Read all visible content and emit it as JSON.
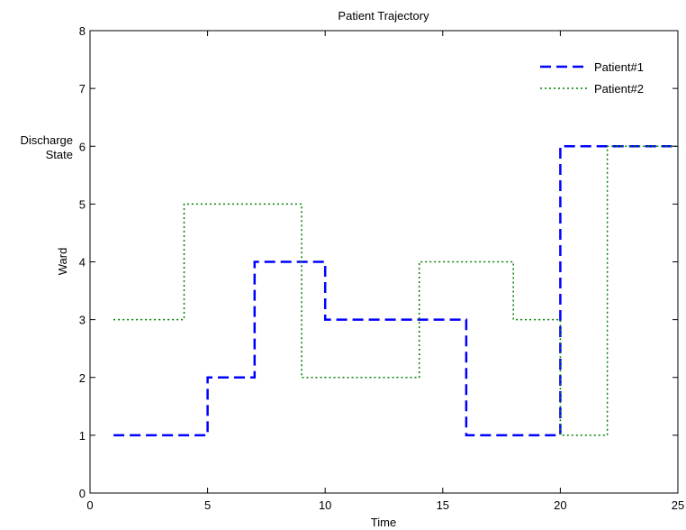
{
  "chart_data": {
    "type": "line",
    "title": "Patient Trajectory",
    "xlabel": "Time",
    "ylabel": "Ward",
    "xlim": [
      0,
      25
    ],
    "ylim": [
      0,
      8
    ],
    "xticks": [
      0,
      5,
      10,
      15,
      20,
      25
    ],
    "yticks": [
      0,
      1,
      2,
      3,
      4,
      5,
      6,
      7,
      8
    ],
    "y_annotation": [
      "Discharge",
      "State"
    ],
    "grid": false,
    "legend_position": "top-right",
    "series": [
      {
        "name": "Patient#1",
        "color": "#0000ff",
        "style": "dashed",
        "x": [
          1,
          5,
          5,
          7,
          7,
          10,
          10,
          16,
          16,
          20,
          20,
          25
        ],
        "y": [
          1,
          1,
          2,
          2,
          4,
          4,
          3,
          3,
          1,
          1,
          6,
          6
        ]
      },
      {
        "name": "Patient#2",
        "color": "#008000",
        "style": "dotted",
        "x": [
          1,
          4,
          4,
          9,
          9,
          14,
          14,
          18,
          18,
          20,
          20,
          22,
          22,
          25
        ],
        "y": [
          3,
          3,
          5,
          5,
          2,
          2,
          4,
          4,
          3,
          3,
          1,
          1,
          6,
          6
        ]
      }
    ]
  }
}
